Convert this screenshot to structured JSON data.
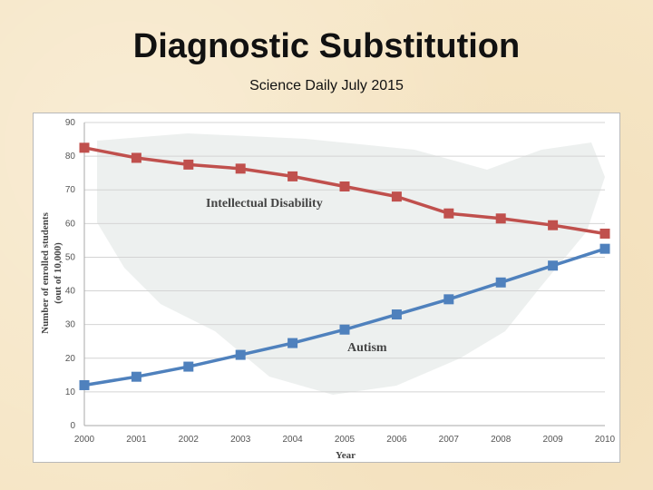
{
  "slide": {
    "title": "Diagnostic Substitution",
    "subtitle": "Science Daily July 2015"
  },
  "chart_data": {
    "type": "line",
    "title": "",
    "xlabel": "Year",
    "ylabel": "Number of enrolled students",
    "ylabel_sub": "(out of 10,000)",
    "x": [
      "2000",
      "2001",
      "2002",
      "2003",
      "2004",
      "2005",
      "2006",
      "2007",
      "2008",
      "2009",
      "2010"
    ],
    "ylim": [
      0,
      90
    ],
    "yticks": [
      "0",
      "10",
      "20",
      "30",
      "40",
      "50",
      "60",
      "70",
      "80",
      "90"
    ],
    "grid": true,
    "series": [
      {
        "name": "Intellectual Disability",
        "color": "#c0504d",
        "values": [
          82.5,
          79.5,
          77.5,
          76.3,
          74,
          71,
          68,
          63,
          61.5,
          59.5,
          57
        ]
      },
      {
        "name": "Autism",
        "color": "#4f81bd",
        "values": [
          12,
          14.5,
          17.5,
          21,
          24.5,
          28.5,
          33,
          37.5,
          42.5,
          47.5,
          52.5
        ]
      }
    ]
  }
}
